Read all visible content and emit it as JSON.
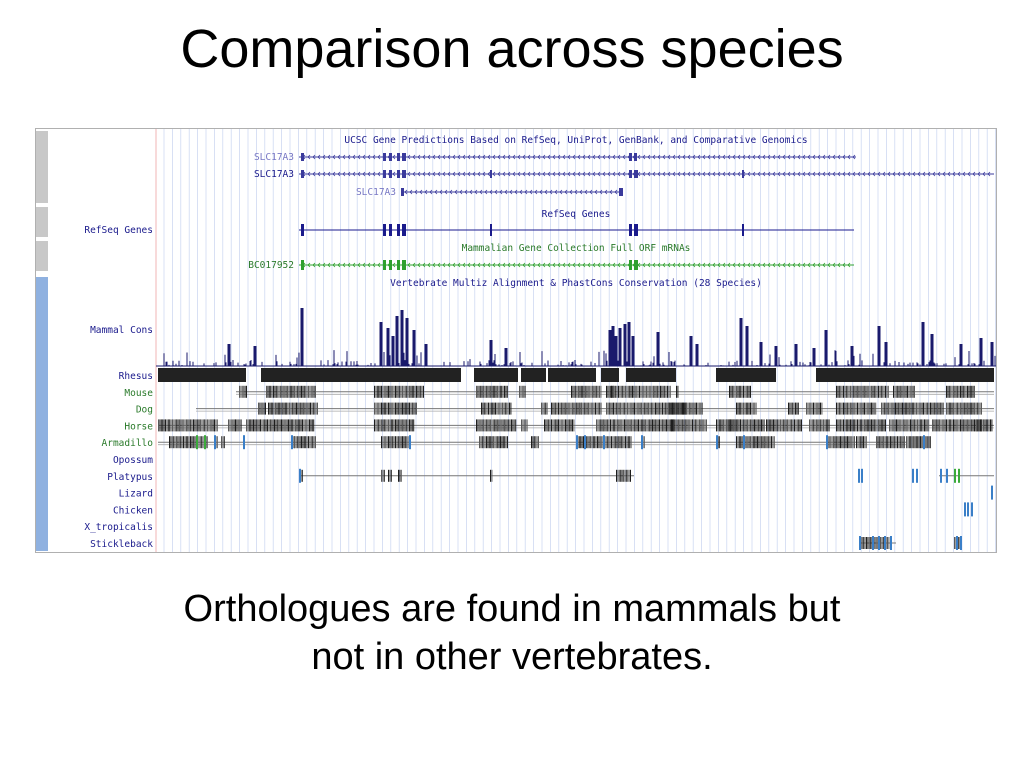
{
  "slide": {
    "title": "Comparison across species",
    "caption_lines": [
      "Orthologues are found in mammals but",
      "not in other vertebrates."
    ]
  },
  "browser": {
    "colors": {
      "ucsc_gene": "#3a3a9c",
      "refseq": "#1a1a8c",
      "mrna": "#2ea02e",
      "cons": "#1a1a6c",
      "align": "#222222",
      "gap_line": "#777777",
      "blue_tick": "#3a7fc8",
      "green_tick": "#3aaa3a",
      "label_blue": "#1a1a8c",
      "label_green": "#2a7a2a",
      "label_muted": "#7777c4",
      "side_gray": "#c8c8c8",
      "side_blue": "#8fb1e0",
      "grid": "#c8d4f0",
      "left_border": "#f0b4b4"
    },
    "track_titles": {
      "ucsc_genes": "UCSC Gene Predictions Based on RefSeq, UniProt, GenBank, and Comparative Genomics",
      "refseq": "RefSeq Genes",
      "mrna": "Mammalian Gene Collection Full ORF mRNAs",
      "conservation": "Vertebrate Multiz Alignment & PhastCons Conservation (28 Species)"
    },
    "gene_labels": [
      "SLC17A3",
      "SLC17A3",
      "SLC17A3"
    ],
    "refseq_label": "RefSeq Genes",
    "mrna_label": "BC017952",
    "cons_label": "Mammal Cons",
    "species": [
      {
        "name": "Rhesus",
        "color": "#1a1a8c"
      },
      {
        "name": "Mouse",
        "color": "#2a7a2a"
      },
      {
        "name": "Dog",
        "color": "#2a7a2a"
      },
      {
        "name": "Horse",
        "color": "#2a7a2a"
      },
      {
        "name": "Armadillo",
        "color": "#2a7a2a"
      },
      {
        "name": "Opossum",
        "color": "#1a1a8c"
      },
      {
        "name": "Platypus",
        "color": "#1a1a8c"
      },
      {
        "name": "Lizard",
        "color": "#1a1a8c"
      },
      {
        "name": "Chicken",
        "color": "#1a1a8c"
      },
      {
        "name": "X_tropicalis",
        "color": "#1a1a8c"
      },
      {
        "name": "Stickleback",
        "color": "#1a1a8c"
      }
    ]
  }
}
